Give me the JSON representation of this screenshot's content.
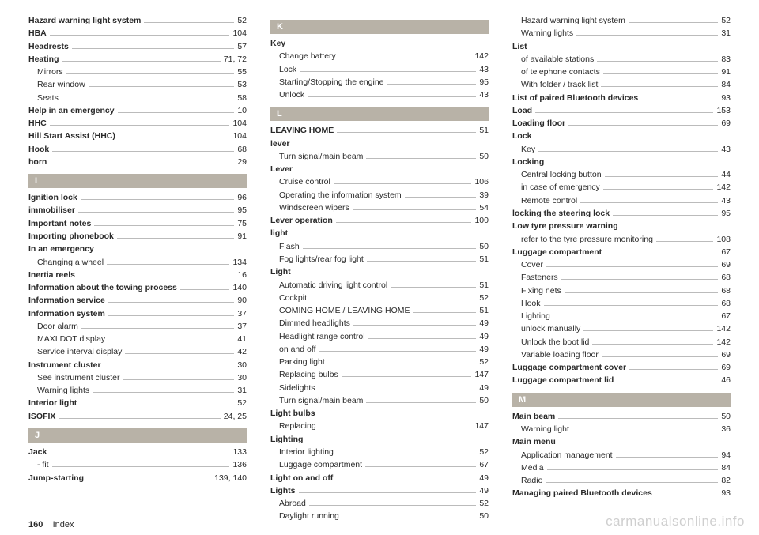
{
  "footer": {
    "pageNumber": "160",
    "section": "Index"
  },
  "watermark": "carmanualsonline.info",
  "columns": [
    [
      {
        "type": "entry",
        "bold": true,
        "label": "Hazard warning light system",
        "page": "52"
      },
      {
        "type": "entry",
        "bold": true,
        "label": "HBA",
        "page": "104"
      },
      {
        "type": "entry",
        "bold": true,
        "label": "Headrests",
        "page": "57"
      },
      {
        "type": "entry",
        "bold": true,
        "label": "Heating",
        "page": "71, 72"
      },
      {
        "type": "entry",
        "sub": true,
        "label": "Mirrors",
        "page": "55"
      },
      {
        "type": "entry",
        "sub": true,
        "label": "Rear window",
        "page": "53"
      },
      {
        "type": "entry",
        "sub": true,
        "label": "Seats",
        "page": "58"
      },
      {
        "type": "entry",
        "bold": true,
        "label": "Help in an emergency",
        "page": "10"
      },
      {
        "type": "entry",
        "bold": true,
        "label": "HHC",
        "page": "104"
      },
      {
        "type": "entry",
        "bold": true,
        "label": "Hill Start Assist (HHC)",
        "page": "104"
      },
      {
        "type": "entry",
        "bold": true,
        "label": "Hook",
        "page": "68"
      },
      {
        "type": "entry",
        "bold": true,
        "label": "horn",
        "page": "29"
      },
      {
        "type": "header",
        "label": "I"
      },
      {
        "type": "entry",
        "bold": true,
        "label": "Ignition lock",
        "page": "96"
      },
      {
        "type": "entry",
        "bold": true,
        "label": "immobiliser",
        "page": "95"
      },
      {
        "type": "entry",
        "bold": true,
        "label": "Important notes",
        "page": "75"
      },
      {
        "type": "entry",
        "bold": true,
        "label": "Importing phonebook",
        "page": "91"
      },
      {
        "type": "entry",
        "bold": true,
        "noval": true,
        "label": "In an emergency"
      },
      {
        "type": "entry",
        "sub": true,
        "label": "Changing a wheel",
        "page": "134"
      },
      {
        "type": "entry",
        "bold": true,
        "label": "Inertia reels",
        "page": "16"
      },
      {
        "type": "entry",
        "bold": true,
        "label": "Information about the towing process",
        "page": "140"
      },
      {
        "type": "entry",
        "bold": true,
        "label": "Information service",
        "page": "90"
      },
      {
        "type": "entry",
        "bold": true,
        "label": "Information system",
        "page": "37"
      },
      {
        "type": "entry",
        "sub": true,
        "label": "Door alarm",
        "page": "37"
      },
      {
        "type": "entry",
        "sub": true,
        "label": "MAXI DOT display",
        "page": "41"
      },
      {
        "type": "entry",
        "sub": true,
        "label": "Service interval display",
        "page": "42"
      },
      {
        "type": "entry",
        "bold": true,
        "label": "Instrument cluster",
        "page": "30"
      },
      {
        "type": "entry",
        "sub": true,
        "label": "See instrument cluster",
        "page": "30"
      },
      {
        "type": "entry",
        "sub": true,
        "label": "Warning lights",
        "page": "31"
      },
      {
        "type": "entry",
        "bold": true,
        "label": "Interior light",
        "page": "52"
      },
      {
        "type": "entry",
        "bold": true,
        "label": "ISOFIX",
        "page": "24, 25"
      },
      {
        "type": "header",
        "label": "J"
      },
      {
        "type": "entry",
        "bold": true,
        "label": "Jack",
        "page": "133"
      },
      {
        "type": "entry",
        "sub": true,
        "label": "- fit",
        "page": "136"
      },
      {
        "type": "entry",
        "bold": true,
        "label": "Jump-starting",
        "page": "139, 140"
      }
    ],
    [
      {
        "type": "header",
        "label": "K"
      },
      {
        "type": "entry",
        "bold": true,
        "noval": true,
        "label": "Key"
      },
      {
        "type": "entry",
        "sub": true,
        "label": "Change battery",
        "page": "142"
      },
      {
        "type": "entry",
        "sub": true,
        "label": "Lock",
        "page": "43"
      },
      {
        "type": "entry",
        "sub": true,
        "label": "Starting/Stopping the engine",
        "page": "95"
      },
      {
        "type": "entry",
        "sub": true,
        "label": "Unlock",
        "page": "43"
      },
      {
        "type": "header",
        "label": "L"
      },
      {
        "type": "entry",
        "bold": true,
        "label": "LEAVING HOME",
        "page": "51"
      },
      {
        "type": "entry",
        "bold": true,
        "noval": true,
        "label": "lever"
      },
      {
        "type": "entry",
        "sub": true,
        "label": "Turn signal/main beam",
        "page": "50"
      },
      {
        "type": "entry",
        "bold": true,
        "noval": true,
        "label": "Lever"
      },
      {
        "type": "entry",
        "sub": true,
        "label": "Cruise control",
        "page": "106"
      },
      {
        "type": "entry",
        "sub": true,
        "label": "Operating the information system",
        "page": "39"
      },
      {
        "type": "entry",
        "sub": true,
        "label": "Windscreen wipers",
        "page": "54"
      },
      {
        "type": "entry",
        "bold": true,
        "label": "Lever operation",
        "page": "100"
      },
      {
        "type": "entry",
        "bold": true,
        "noval": true,
        "label": "light"
      },
      {
        "type": "entry",
        "sub": true,
        "label": "Flash",
        "page": "50"
      },
      {
        "type": "entry",
        "sub": true,
        "label": "Fog lights/rear fog light",
        "page": "51"
      },
      {
        "type": "entry",
        "bold": true,
        "noval": true,
        "label": "Light"
      },
      {
        "type": "entry",
        "sub": true,
        "label": "Automatic driving light control",
        "page": "51"
      },
      {
        "type": "entry",
        "sub": true,
        "label": "Cockpit",
        "page": "52"
      },
      {
        "type": "entry",
        "sub": true,
        "label": "COMING HOME / LEAVING HOME",
        "page": "51"
      },
      {
        "type": "entry",
        "sub": true,
        "label": "Dimmed headlights",
        "page": "49"
      },
      {
        "type": "entry",
        "sub": true,
        "label": "Headlight range control",
        "page": "49"
      },
      {
        "type": "entry",
        "sub": true,
        "label": "on and off",
        "page": "49"
      },
      {
        "type": "entry",
        "sub": true,
        "label": "Parking light",
        "page": "52"
      },
      {
        "type": "entry",
        "sub": true,
        "label": "Replacing bulbs",
        "page": "147"
      },
      {
        "type": "entry",
        "sub": true,
        "label": "Sidelights",
        "page": "49"
      },
      {
        "type": "entry",
        "sub": true,
        "label": "Turn signal/main beam",
        "page": "50"
      },
      {
        "type": "entry",
        "bold": true,
        "noval": true,
        "label": "Light bulbs"
      },
      {
        "type": "entry",
        "sub": true,
        "label": "Replacing",
        "page": "147"
      },
      {
        "type": "entry",
        "bold": true,
        "noval": true,
        "label": "Lighting"
      },
      {
        "type": "entry",
        "sub": true,
        "label": "Interior lighting",
        "page": "52"
      },
      {
        "type": "entry",
        "sub": true,
        "label": "Luggage compartment",
        "page": "67"
      },
      {
        "type": "entry",
        "bold": true,
        "label": "Light on and off",
        "page": "49"
      },
      {
        "type": "entry",
        "bold": true,
        "label": "Lights",
        "page": "49"
      },
      {
        "type": "entry",
        "sub": true,
        "label": "Abroad",
        "page": "52"
      },
      {
        "type": "entry",
        "sub": true,
        "label": "Daylight running",
        "page": "50"
      }
    ],
    [
      {
        "type": "entry",
        "sub": true,
        "label": "Hazard warning light system",
        "page": "52"
      },
      {
        "type": "entry",
        "sub": true,
        "label": "Warning lights",
        "page": "31"
      },
      {
        "type": "entry",
        "bold": true,
        "noval": true,
        "label": "List"
      },
      {
        "type": "entry",
        "sub": true,
        "label": "of available stations",
        "page": "83"
      },
      {
        "type": "entry",
        "sub": true,
        "label": "of telephone contacts",
        "page": "91"
      },
      {
        "type": "entry",
        "sub": true,
        "label": "With folder / track list",
        "page": "84"
      },
      {
        "type": "entry",
        "bold": true,
        "label": "List of paired Bluetooth devices",
        "page": "93"
      },
      {
        "type": "entry",
        "bold": true,
        "label": "Load",
        "page": "153"
      },
      {
        "type": "entry",
        "bold": true,
        "label": "Loading floor",
        "page": "69"
      },
      {
        "type": "entry",
        "bold": true,
        "noval": true,
        "label": "Lock"
      },
      {
        "type": "entry",
        "sub": true,
        "label": "Key",
        "page": "43"
      },
      {
        "type": "entry",
        "bold": true,
        "noval": true,
        "label": "Locking"
      },
      {
        "type": "entry",
        "sub": true,
        "label": "Central locking button",
        "page": "44"
      },
      {
        "type": "entry",
        "sub": true,
        "label": "in case of emergency",
        "page": "142"
      },
      {
        "type": "entry",
        "sub": true,
        "label": "Remote control",
        "page": "43"
      },
      {
        "type": "entry",
        "bold": true,
        "label": "locking the steering lock",
        "page": "95"
      },
      {
        "type": "entry",
        "bold": true,
        "noval": true,
        "label": "Low tyre pressure warning"
      },
      {
        "type": "entry",
        "sub": true,
        "label": "refer to the tyre pressure monitoring",
        "page": "108"
      },
      {
        "type": "entry",
        "bold": true,
        "label": "Luggage compartment",
        "page": "67"
      },
      {
        "type": "entry",
        "sub": true,
        "label": "Cover",
        "page": "69"
      },
      {
        "type": "entry",
        "sub": true,
        "label": "Fasteners",
        "page": "68"
      },
      {
        "type": "entry",
        "sub": true,
        "label": "Fixing nets",
        "page": "68"
      },
      {
        "type": "entry",
        "sub": true,
        "label": "Hook",
        "page": "68"
      },
      {
        "type": "entry",
        "sub": true,
        "label": "Lighting",
        "page": "67"
      },
      {
        "type": "entry",
        "sub": true,
        "label": "unlock manually",
        "page": "142"
      },
      {
        "type": "entry",
        "sub": true,
        "label": "Unlock the boot lid",
        "page": "142"
      },
      {
        "type": "entry",
        "sub": true,
        "label": "Variable loading floor",
        "page": "69"
      },
      {
        "type": "entry",
        "bold": true,
        "label": "Luggage compartment cover",
        "page": "69"
      },
      {
        "type": "entry",
        "bold": true,
        "label": "Luggage compartment lid",
        "page": "46"
      },
      {
        "type": "header",
        "label": "M"
      },
      {
        "type": "entry",
        "bold": true,
        "label": "Main beam",
        "page": "50"
      },
      {
        "type": "entry",
        "sub": true,
        "label": "Warning light",
        "page": "36"
      },
      {
        "type": "entry",
        "bold": true,
        "noval": true,
        "label": "Main menu"
      },
      {
        "type": "entry",
        "sub": true,
        "label": "Application management",
        "page": "94"
      },
      {
        "type": "entry",
        "sub": true,
        "label": "Media",
        "page": "84"
      },
      {
        "type": "entry",
        "sub": true,
        "label": "Radio",
        "page": "82"
      },
      {
        "type": "entry",
        "bold": true,
        "label": "Managing paired Bluetooth devices",
        "page": "93"
      }
    ]
  ]
}
